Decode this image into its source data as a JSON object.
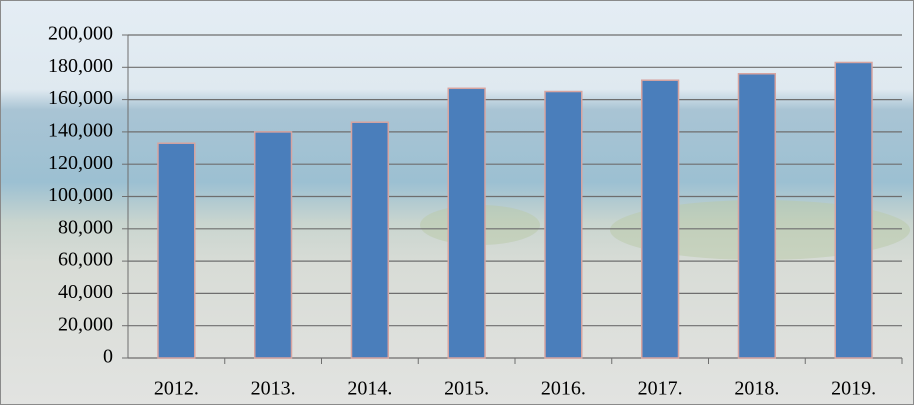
{
  "chart_data": {
    "type": "bar",
    "categories": [
      "2012.",
      "2013.",
      "2014.",
      "2015.",
      "2016.",
      "2017.",
      "2018.",
      "2019."
    ],
    "values": [
      133000,
      140000,
      146000,
      167000,
      165000,
      172000,
      176000,
      183000
    ],
    "color": "#4a7ebb",
    "ylim": [
      0,
      200000
    ],
    "yticks": [
      0,
      {
        "value": 20000,
        "label": "20,000"
      },
      {
        "value": 40000,
        "label": "40,000"
      },
      {
        "value": 60000,
        "label": "60,000"
      },
      {
        "value": 80000,
        "label": "80,000"
      },
      {
        "value": 100000,
        "label": "100,000"
      },
      {
        "value": 120000,
        "label": "120,000"
      },
      {
        "value": 140000,
        "label": "140,000"
      },
      {
        "value": 160000,
        "label": "160,000"
      },
      {
        "value": 180000,
        "label": "180,000"
      },
      {
        "value": 200000,
        "label": "200,000"
      }
    ],
    "grid": true
  }
}
